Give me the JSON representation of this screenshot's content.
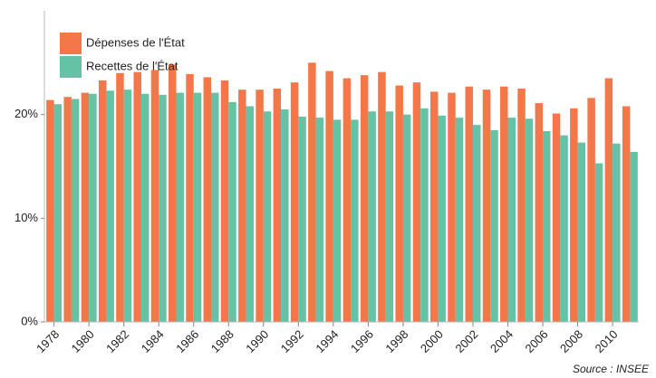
{
  "chart_data": {
    "type": "grouped-bar",
    "categories": [
      "1978",
      null,
      "1980",
      null,
      "1982",
      null,
      "1984",
      null,
      "1986",
      null,
      "1988",
      null,
      "1990",
      null,
      "1992",
      null,
      "1994",
      null,
      "1996",
      null,
      "1998",
      null,
      "2000",
      null,
      "2002",
      null,
      "2004",
      null,
      "2006",
      null,
      "2008",
      null,
      "2010",
      null
    ],
    "series": [
      {
        "name": "Dépenses de l'État",
        "color": "#f4774a",
        "values": [
          21.4,
          21.7,
          22.1,
          23.3,
          24.0,
          24.1,
          24.3,
          24.8,
          23.9,
          23.6,
          23.3,
          22.4,
          22.4,
          22.5,
          23.1,
          25.0,
          24.2,
          23.5,
          23.8,
          24.1,
          22.8,
          23.1,
          22.2,
          22.1,
          22.7,
          22.4,
          22.7,
          22.5,
          21.1,
          20.1,
          20.6,
          21.6,
          23.5,
          20.8
        ]
      },
      {
        "name": "Recettes de l'État",
        "color": "#66c2a5",
        "values": [
          21.0,
          21.5,
          22.0,
          22.3,
          22.4,
          22.0,
          21.9,
          22.1,
          22.1,
          22.1,
          21.2,
          20.8,
          20.3,
          20.5,
          19.8,
          19.7,
          19.5,
          19.5,
          20.3,
          20.3,
          20.0,
          20.6,
          19.9,
          19.7,
          19.0,
          18.5,
          19.7,
          19.6,
          18.4,
          18.0,
          17.3,
          15.3,
          17.2,
          16.4
        ]
      }
    ],
    "ylim": [
      0,
      30
    ],
    "yticks": [
      {
        "value": 0,
        "label": "0%"
      },
      {
        "value": 10,
        "label": "10%"
      },
      {
        "value": 20,
        "label": "20%"
      }
    ],
    "legend": "top-left",
    "source": "Source : INSEE"
  }
}
